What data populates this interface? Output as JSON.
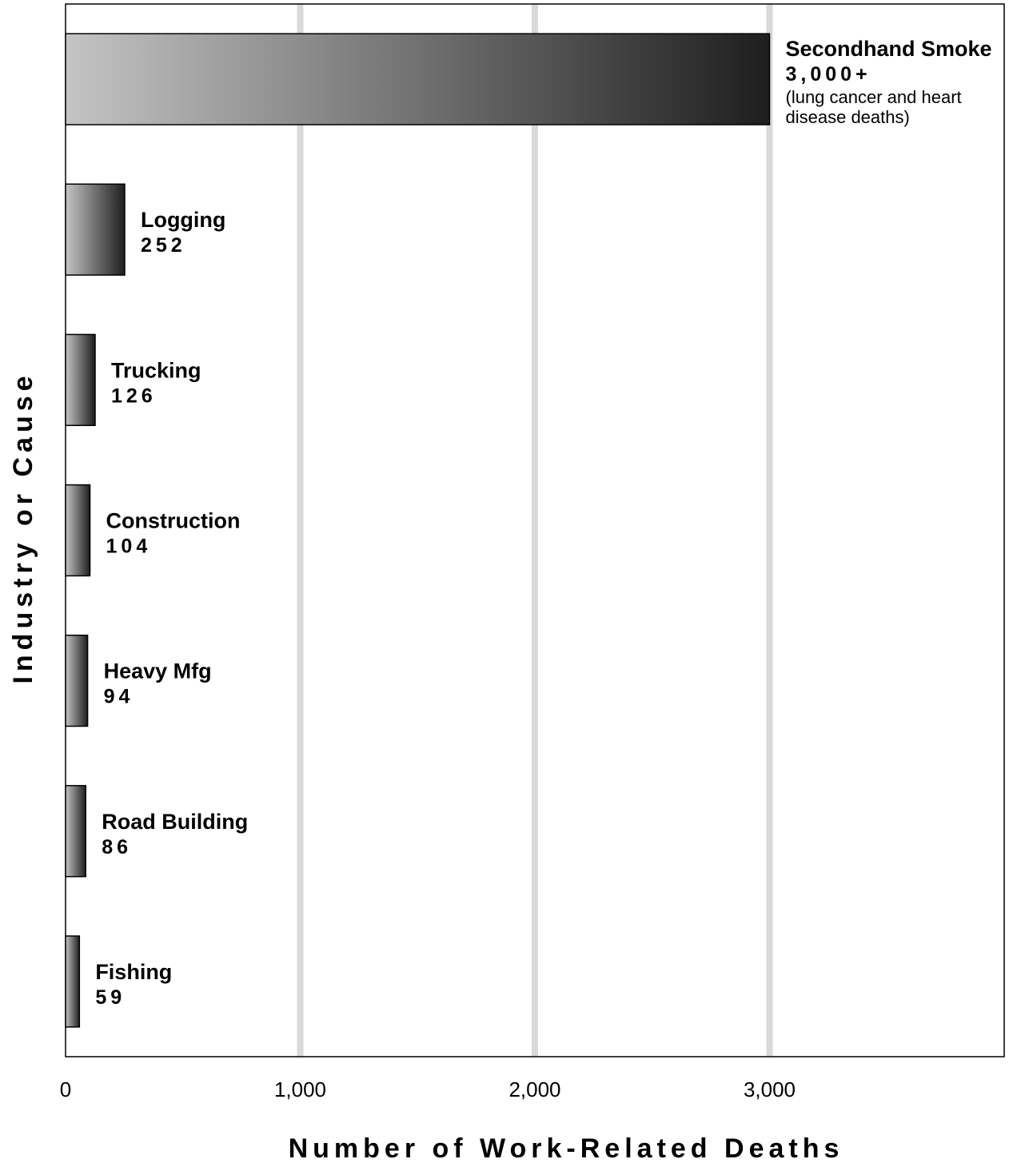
{
  "chart_data": {
    "type": "bar",
    "orientation": "horizontal",
    "categories": [
      "Secondhand Smoke",
      "Logging",
      "Trucking",
      "Construction",
      "Heavy Mfg",
      "Road Building",
      "Fishing"
    ],
    "values": [
      3000,
      252,
      126,
      104,
      94,
      86,
      59
    ],
    "value_labels": [
      "3,000+",
      "252",
      "126",
      "104",
      "94",
      "86",
      "59"
    ],
    "notes": [
      [
        "(lung cancer and heart",
        "disease deaths)"
      ],
      [],
      [],
      [],
      [],
      [],
      []
    ],
    "xlabel": "Number of Work-Related Deaths",
    "ylabel": "Industry or Cause",
    "xlim": [
      0,
      4000
    ],
    "xticks": [
      0,
      1000,
      2000,
      3000
    ],
    "xtick_labels": [
      "0",
      "1,000",
      "2,000",
      "3,000"
    ],
    "grid": "vertical",
    "colors": {
      "grid": "#d9d9d9",
      "bar_gradient_start": "#c4c4c4",
      "bar_gradient_end": "#1e1e1e",
      "frame": "#000000"
    }
  }
}
